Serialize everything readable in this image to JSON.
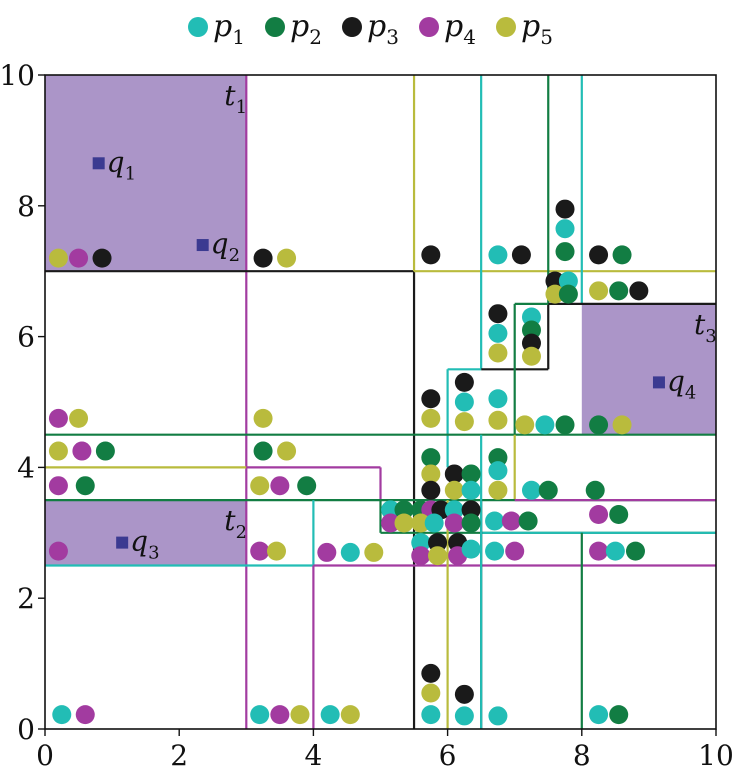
{
  "chart_data": {
    "type": "scatter",
    "xlim": [
      0,
      10
    ],
    "ylim": [
      0,
      10
    ],
    "x_ticks": [
      0,
      2,
      4,
      6,
      8,
      10
    ],
    "y_ticks": [
      0,
      2,
      4,
      6,
      8,
      10
    ],
    "grid": false,
    "legend_placement": "top",
    "colors": {
      "p1": "#22bdb5",
      "p2": "#127d43",
      "p3": "#1a1a1a",
      "p4": "#a23ba0",
      "p5": "#b9bb3d",
      "query": "#3b3a91",
      "target_fill": "#ab95c8"
    },
    "legend": [
      {
        "key": "p1",
        "base": "p",
        "sub": "1"
      },
      {
        "key": "p2",
        "base": "p",
        "sub": "2"
      },
      {
        "key": "p3",
        "base": "p",
        "sub": "3"
      },
      {
        "key": "p4",
        "base": "p",
        "sub": "4"
      },
      {
        "key": "p5",
        "base": "p",
        "sub": "5"
      }
    ],
    "targets": [
      {
        "base": "t",
        "sub": "1",
        "x0": 0,
        "y0": 7,
        "x1": 3,
        "y1": 10
      },
      {
        "base": "t",
        "sub": "2",
        "x0": 0,
        "y0": 2.5,
        "x1": 3,
        "y1": 3.5
      },
      {
        "base": "t",
        "sub": "3",
        "x0": 8,
        "y0": 4.5,
        "x1": 10,
        "y1": 6.5
      }
    ],
    "queries": [
      {
        "base": "q",
        "sub": "1",
        "x": 0.8,
        "y": 8.65
      },
      {
        "base": "q",
        "sub": "2",
        "x": 2.35,
        "y": 7.4
      },
      {
        "base": "q",
        "sub": "3",
        "x": 1.15,
        "y": 2.85
      },
      {
        "base": "q",
        "sub": "4",
        "x": 9.15,
        "y": 5.3
      }
    ],
    "regions": [
      {
        "series": "p4",
        "x0": 3,
        "y0": 7,
        "x1": 3,
        "y1": 10
      },
      {
        "series": "p4",
        "x0": 3,
        "y0": 0,
        "x1": 3,
        "y1": 7
      },
      {
        "series": "p3",
        "x0": 0,
        "y0": 7,
        "x1": 5.5,
        "y1": 7
      },
      {
        "series": "p3",
        "x0": 5.5,
        "y0": 0,
        "x1": 5.5,
        "y1": 7
      },
      {
        "series": "p5",
        "x0": 5.5,
        "y0": 7,
        "x1": 5.5,
        "y1": 10
      },
      {
        "series": "p5",
        "x0": 5.5,
        "y0": 7,
        "x1": 10,
        "y1": 7
      },
      {
        "series": "p1",
        "x0": 6.5,
        "y0": 5.5,
        "x1": 6.5,
        "y1": 10
      },
      {
        "series": "p2",
        "x0": 7.5,
        "y0": 6.5,
        "x1": 7.5,
        "y1": 10
      },
      {
        "series": "p1",
        "x0": 8,
        "y0": 6.5,
        "x1": 8,
        "y1": 10
      },
      {
        "series": "p3",
        "x0": 7.5,
        "y0": 6.5,
        "x1": 10,
        "y1": 6.5
      },
      {
        "series": "p3",
        "x0": 7.5,
        "y0": 5.5,
        "x1": 7.5,
        "y1": 6.5
      },
      {
        "series": "p3",
        "x0": 6.5,
        "y0": 5.5,
        "x1": 7.5,
        "y1": 5.5
      },
      {
        "series": "p2",
        "x0": 7,
        "y0": 6.5,
        "x1": 7.5,
        "y1": 6.5
      },
      {
        "series": "p2",
        "x0": 7,
        "y0": 4.5,
        "x1": 7,
        "y1": 6.5
      },
      {
        "series": "p1",
        "x0": 6,
        "y0": 5.5,
        "x1": 6.5,
        "y1": 5.5
      },
      {
        "series": "p1",
        "x0": 6,
        "y0": 4,
        "x1": 6,
        "y1": 5.5
      },
      {
        "series": "p2",
        "x0": 0,
        "y0": 4.5,
        "x1": 10,
        "y1": 4.5
      },
      {
        "series": "p5",
        "x0": 7,
        "y0": 4.5,
        "x1": 7,
        "y1": 3.5
      },
      {
        "series": "p5",
        "x0": 0,
        "y0": 4,
        "x1": 3,
        "y1": 4
      },
      {
        "series": "p4",
        "x0": 3,
        "y0": 4,
        "x1": 5,
        "y1": 4
      },
      {
        "series": "p4",
        "x0": 5,
        "y0": 3.5,
        "x1": 5,
        "y1": 4
      },
      {
        "series": "p2",
        "x0": 0,
        "y0": 3.5,
        "x1": 10,
        "y1": 3.5
      },
      {
        "series": "p4",
        "x0": 7,
        "y0": 3.5,
        "x1": 10,
        "y1": 3.5
      },
      {
        "series": "p2",
        "x0": 5,
        "y0": 3,
        "x1": 5,
        "y1": 3.5
      },
      {
        "series": "p2",
        "x0": 5,
        "y0": 3,
        "x1": 10,
        "y1": 3
      },
      {
        "series": "p1",
        "x0": 6.5,
        "y0": 3,
        "x1": 10,
        "y1": 3
      },
      {
        "series": "p1",
        "x0": 4,
        "y0": 2.5,
        "x1": 4,
        "y1": 3.5
      },
      {
        "series": "p1",
        "x0": 0,
        "y0": 2.5,
        "x1": 4,
        "y1": 2.5
      },
      {
        "series": "p4",
        "x0": 4,
        "y0": 0,
        "x1": 4,
        "y1": 2.5
      },
      {
        "series": "p4",
        "x0": 4,
        "y0": 2.5,
        "x1": 10,
        "y1": 2.5
      },
      {
        "series": "p5",
        "x0": 6,
        "y0": 0,
        "x1": 6,
        "y1": 3.5
      },
      {
        "series": "p3",
        "x0": 6.5,
        "y0": 0,
        "x1": 6.5,
        "y1": 3.5
      },
      {
        "series": "p1",
        "x0": 6.5,
        "y0": 3.5,
        "x1": 6.5,
        "y1": 4.5
      },
      {
        "series": "p1",
        "x0": 6.5,
        "y0": 3.5,
        "x1": 6.5,
        "y1": 0
      },
      {
        "series": "p2",
        "x0": 8,
        "y0": 0,
        "x1": 8,
        "y1": 3
      }
    ],
    "points": [
      {
        "series": "p5",
        "x": 0.2,
        "y": 7.2
      },
      {
        "series": "p4",
        "x": 0.5,
        "y": 7.2
      },
      {
        "series": "p3",
        "x": 0.85,
        "y": 7.2
      },
      {
        "series": "p3",
        "x": 3.25,
        "y": 7.2
      },
      {
        "series": "p5",
        "x": 3.6,
        "y": 7.2
      },
      {
        "series": "p3",
        "x": 5.75,
        "y": 7.25
      },
      {
        "series": "p1",
        "x": 6.75,
        "y": 7.25
      },
      {
        "series": "p3",
        "x": 7.1,
        "y": 7.25
      },
      {
        "series": "p3",
        "x": 7.75,
        "y": 7.95
      },
      {
        "series": "p1",
        "x": 7.75,
        "y": 7.65
      },
      {
        "series": "p2",
        "x": 7.75,
        "y": 7.3
      },
      {
        "series": "p3",
        "x": 8.25,
        "y": 7.25
      },
      {
        "series": "p2",
        "x": 8.6,
        "y": 7.25
      },
      {
        "series": "p3",
        "x": 7.6,
        "y": 6.85
      },
      {
        "series": "p1",
        "x": 7.8,
        "y": 6.85
      },
      {
        "series": "p5",
        "x": 7.6,
        "y": 6.65
      },
      {
        "series": "p2",
        "x": 7.8,
        "y": 6.65
      },
      {
        "series": "p5",
        "x": 8.25,
        "y": 6.7
      },
      {
        "series": "p2",
        "x": 8.55,
        "y": 6.7
      },
      {
        "series": "p3",
        "x": 8.85,
        "y": 6.7
      },
      {
        "series": "p3",
        "x": 6.75,
        "y": 6.35
      },
      {
        "series": "p1",
        "x": 6.75,
        "y": 6.05
      },
      {
        "series": "p5",
        "x": 6.75,
        "y": 5.75
      },
      {
        "series": "p1",
        "x": 7.25,
        "y": 6.3
      },
      {
        "series": "p2",
        "x": 7.25,
        "y": 6.1
      },
      {
        "series": "p3",
        "x": 7.25,
        "y": 5.9
      },
      {
        "series": "p5",
        "x": 7.25,
        "y": 5.7
      },
      {
        "series": "p3",
        "x": 6.25,
        "y": 5.3
      },
      {
        "series": "p1",
        "x": 6.25,
        "y": 5.0
      },
      {
        "series": "p5",
        "x": 6.25,
        "y": 4.7
      },
      {
        "series": "p3",
        "x": 5.75,
        "y": 5.05
      },
      {
        "series": "p5",
        "x": 5.75,
        "y": 4.75
      },
      {
        "series": "p1",
        "x": 6.75,
        "y": 5.05
      },
      {
        "series": "p5",
        "x": 6.75,
        "y": 4.72
      },
      {
        "series": "p5",
        "x": 7.15,
        "y": 4.65
      },
      {
        "series": "p1",
        "x": 7.45,
        "y": 4.65
      },
      {
        "series": "p2",
        "x": 7.75,
        "y": 4.65
      },
      {
        "series": "p2",
        "x": 8.25,
        "y": 4.65
      },
      {
        "series": "p5",
        "x": 8.6,
        "y": 4.65
      },
      {
        "series": "p4",
        "x": 0.2,
        "y": 4.75
      },
      {
        "series": "p5",
        "x": 0.5,
        "y": 4.75
      },
      {
        "series": "p5",
        "x": 3.25,
        "y": 4.75
      },
      {
        "series": "p5",
        "x": 0.2,
        "y": 4.25
      },
      {
        "series": "p4",
        "x": 0.55,
        "y": 4.25
      },
      {
        "series": "p2",
        "x": 0.9,
        "y": 4.25
      },
      {
        "series": "p2",
        "x": 3.25,
        "y": 4.25
      },
      {
        "series": "p5",
        "x": 3.6,
        "y": 4.25
      },
      {
        "series": "p4",
        "x": 0.2,
        "y": 3.72
      },
      {
        "series": "p2",
        "x": 0.6,
        "y": 3.72
      },
      {
        "series": "p5",
        "x": 3.2,
        "y": 3.72
      },
      {
        "series": "p4",
        "x": 3.5,
        "y": 3.72
      },
      {
        "series": "p2",
        "x": 3.9,
        "y": 3.72
      },
      {
        "series": "p2",
        "x": 5.75,
        "y": 4.15
      },
      {
        "series": "p5",
        "x": 5.75,
        "y": 3.9
      },
      {
        "series": "p3",
        "x": 5.75,
        "y": 3.65
      },
      {
        "series": "p3",
        "x": 6.1,
        "y": 3.9
      },
      {
        "series": "p2",
        "x": 6.35,
        "y": 3.9
      },
      {
        "series": "p5",
        "x": 6.1,
        "y": 3.65
      },
      {
        "series": "p1",
        "x": 6.35,
        "y": 3.65
      },
      {
        "series": "p2",
        "x": 6.75,
        "y": 4.15
      },
      {
        "series": "p1",
        "x": 6.75,
        "y": 3.95
      },
      {
        "series": "p5",
        "x": 6.75,
        "y": 3.65
      },
      {
        "series": "p1",
        "x": 7.25,
        "y": 3.65
      },
      {
        "series": "p2",
        "x": 7.5,
        "y": 3.65
      },
      {
        "series": "p2",
        "x": 8.2,
        "y": 3.65
      },
      {
        "series": "p1",
        "x": 5.15,
        "y": 3.35
      },
      {
        "series": "p2",
        "x": 5.35,
        "y": 3.35
      },
      {
        "series": "p4",
        "x": 5.15,
        "y": 3.15
      },
      {
        "series": "p5",
        "x": 5.35,
        "y": 3.15
      },
      {
        "series": "p2",
        "x": 5.6,
        "y": 3.35
      },
      {
        "series": "p4",
        "x": 5.75,
        "y": 3.35
      },
      {
        "series": "p3",
        "x": 5.9,
        "y": 3.35
      },
      {
        "series": "p5",
        "x": 5.6,
        "y": 3.15
      },
      {
        "series": "p1",
        "x": 5.8,
        "y": 3.15
      },
      {
        "series": "p1",
        "x": 6.1,
        "y": 3.35
      },
      {
        "series": "p3",
        "x": 6.35,
        "y": 3.35
      },
      {
        "series": "p4",
        "x": 6.1,
        "y": 3.15
      },
      {
        "series": "p2",
        "x": 6.35,
        "y": 3.15
      },
      {
        "series": "p1",
        "x": 6.7,
        "y": 3.18
      },
      {
        "series": "p4",
        "x": 6.95,
        "y": 3.18
      },
      {
        "series": "p2",
        "x": 7.2,
        "y": 3.18
      },
      {
        "series": "p4",
        "x": 8.25,
        "y": 3.28
      },
      {
        "series": "p2",
        "x": 8.55,
        "y": 3.28
      },
      {
        "series": "p1",
        "x": 5.6,
        "y": 2.85
      },
      {
        "series": "p3",
        "x": 5.85,
        "y": 2.85
      },
      {
        "series": "p4",
        "x": 5.6,
        "y": 2.65
      },
      {
        "series": "p5",
        "x": 5.85,
        "y": 2.65
      },
      {
        "series": "p3",
        "x": 6.15,
        "y": 2.85
      },
      {
        "series": "p4",
        "x": 6.15,
        "y": 2.65
      },
      {
        "series": "p1",
        "x": 6.35,
        "y": 2.75
      },
      {
        "series": "p1",
        "x": 6.7,
        "y": 2.72
      },
      {
        "series": "p4",
        "x": 7.0,
        "y": 2.72
      },
      {
        "series": "p4",
        "x": 8.25,
        "y": 2.72
      },
      {
        "series": "p1",
        "x": 8.5,
        "y": 2.72
      },
      {
        "series": "p2",
        "x": 8.8,
        "y": 2.72
      },
      {
        "series": "p4",
        "x": 0.2,
        "y": 2.72
      },
      {
        "series": "p4",
        "x": 3.2,
        "y": 2.72
      },
      {
        "series": "p5",
        "x": 3.45,
        "y": 2.72
      },
      {
        "series": "p4",
        "x": 4.2,
        "y": 2.7
      },
      {
        "series": "p1",
        "x": 4.55,
        "y": 2.7
      },
      {
        "series": "p5",
        "x": 4.9,
        "y": 2.7
      },
      {
        "series": "p3",
        "x": 5.75,
        "y": 0.85
      },
      {
        "series": "p5",
        "x": 5.75,
        "y": 0.55
      },
      {
        "series": "p1",
        "x": 5.75,
        "y": 0.22
      },
      {
        "series": "p3",
        "x": 6.25,
        "y": 0.53
      },
      {
        "series": "p1",
        "x": 6.25,
        "y": 0.2
      },
      {
        "series": "p1",
        "x": 6.75,
        "y": 0.2
      },
      {
        "series": "p1",
        "x": 0.25,
        "y": 0.22
      },
      {
        "series": "p4",
        "x": 0.6,
        "y": 0.22
      },
      {
        "series": "p1",
        "x": 3.2,
        "y": 0.22
      },
      {
        "series": "p4",
        "x": 3.5,
        "y": 0.22
      },
      {
        "series": "p5",
        "x": 3.8,
        "y": 0.22
      },
      {
        "series": "p1",
        "x": 4.25,
        "y": 0.22
      },
      {
        "series": "p5",
        "x": 4.55,
        "y": 0.22
      },
      {
        "series": "p1",
        "x": 8.25,
        "y": 0.22
      },
      {
        "series": "p2",
        "x": 8.55,
        "y": 0.22
      }
    ]
  }
}
